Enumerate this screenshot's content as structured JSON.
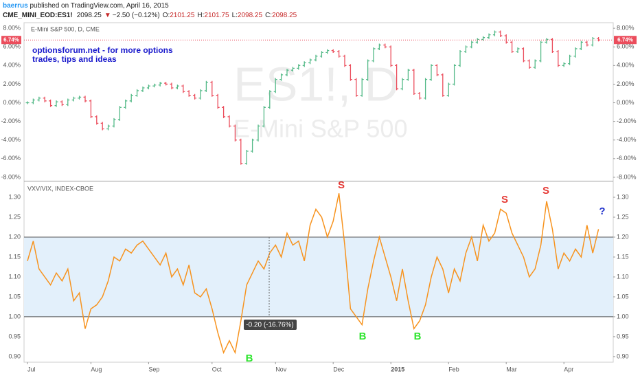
{
  "header": {
    "author": "baerrus",
    "published": " published on TradingView.com, April 16, 2015",
    "symbol": "CME_MINI_EOD:ES1!",
    "last": 2098.25,
    "change": "−2.50 (−0.12%)",
    "ohlc": [
      {
        "label": "O:",
        "value": 2101.25
      },
      {
        "label": "H:",
        "value": 2101.75
      },
      {
        "label": "L:",
        "value": 2098.25
      },
      {
        "label": "C:",
        "value": 2098.25
      }
    ]
  },
  "x_axis": {
    "categories": [
      "Jul",
      null,
      null,
      null,
      null,
      null,
      null,
      null,
      null,
      null,
      null,
      "Aug",
      null,
      null,
      null,
      null,
      null,
      null,
      null,
      null,
      null,
      "Sep",
      null,
      null,
      null,
      null,
      null,
      null,
      null,
      null,
      null,
      null,
      "Oct",
      null,
      null,
      null,
      null,
      null,
      null,
      null,
      null,
      null,
      null,
      "Nov",
      null,
      null,
      null,
      null,
      null,
      null,
      null,
      null,
      null,
      "Dec",
      null,
      null,
      null,
      null,
      null,
      null,
      null,
      null,
      null,
      "2015",
      null,
      null,
      null,
      null,
      null,
      null,
      null,
      null,
      null,
      "Feb",
      null,
      null,
      null,
      null,
      null,
      null,
      null,
      null,
      null,
      "Mar",
      null,
      null,
      null,
      null,
      null,
      null,
      null,
      null,
      null,
      "Apr",
      null,
      null,
      null,
      null,
      null,
      null
    ]
  },
  "chart_data": [
    {
      "type": "stock",
      "title": "E-Mini S&P 500, D, CME",
      "watermark": {
        "symbol": "ES1!, D",
        "name": "E-Mini S&P 500"
      },
      "annotation": "optionsforum.net  - for more options\ntrades, tips and ideas",
      "up_color": "#53b987",
      "down_color": "#eb4d5c",
      "ylim": [
        -8.3,
        8.6
      ],
      "yticks": [
        {
          "value": 8,
          "label": "8.00%"
        },
        {
          "value": 6,
          "label": "6.00%"
        },
        {
          "value": 4,
          "label": "4.00%"
        },
        {
          "value": 2,
          "label": "2.00%"
        },
        {
          "value": 0,
          "label": "0.00%"
        },
        {
          "value": -2,
          "label": "-2.00%"
        },
        {
          "value": -4,
          "label": "-4.00%"
        },
        {
          "value": -6,
          "label": "-6.00%"
        },
        {
          "value": -8,
          "label": "-8.00%"
        }
      ],
      "last_value": 6.74,
      "last_label": "6.74%",
      "values": [
        0.0,
        0.3,
        0.5,
        0.2,
        -0.3,
        0.1,
        -0.2,
        0.3,
        0.5,
        0.6,
        0.2,
        -1.5,
        -2.2,
        -2.8,
        -2.5,
        -1.8,
        -0.5,
        0.2,
        0.8,
        1.3,
        1.6,
        1.8,
        1.9,
        2.1,
        2.0,
        1.6,
        1.8,
        1.2,
        0.8,
        0.5,
        1.3,
        2.2,
        0.8,
        -0.5,
        -1.5,
        -2.5,
        -4.0,
        -6.5,
        -5.2,
        -4.0,
        -2.5,
        -0.5,
        1.2,
        2.5,
        3.0,
        3.5,
        3.7,
        4.0,
        4.3,
        4.6,
        5.0,
        5.4,
        5.6,
        5.5,
        5.0,
        4.0,
        2.5,
        0.8,
        2.5,
        4.5,
        5.8,
        6.2,
        6.0,
        4.0,
        1.5,
        2.5,
        3.5,
        1.0,
        0.5,
        2.5,
        4.0,
        3.0,
        0.8,
        2.0,
        4.0,
        5.5,
        6.0,
        6.5,
        6.8,
        7.0,
        7.3,
        7.6,
        7.2,
        6.5,
        5.5,
        5.8,
        4.5,
        3.8,
        4.5,
        6.5,
        6.8,
        5.5,
        4.0,
        4.2,
        5.0,
        5.8,
        6.5,
        6.2,
        6.9,
        6.74
      ]
    },
    {
      "type": "line",
      "title": "VXV/VIX, INDEX-CBOE",
      "color": "#f7931e",
      "band": [
        1.0,
        1.2
      ],
      "band_color": "#e3f0fb",
      "ylim": [
        0.886,
        1.338
      ],
      "yticks": [
        {
          "value": 1.3,
          "label": "1.30"
        },
        {
          "value": 1.25,
          "label": "1.25"
        },
        {
          "value": 1.2,
          "label": "1.20"
        },
        {
          "value": 1.15,
          "label": "1.15"
        },
        {
          "value": 1.1,
          "label": "1.10"
        },
        {
          "value": 1.05,
          "label": "1.05"
        },
        {
          "value": 1.0,
          "label": "1.00"
        },
        {
          "value": 0.95,
          "label": "0.95"
        },
        {
          "value": 0.9,
          "label": "0.90"
        }
      ],
      "measure": "-0.20 (-16.76%)",
      "annotations": [
        {
          "text": "S",
          "color": "#e53935"
        },
        {
          "text": "B",
          "color": "#2ee52e"
        },
        {
          "text": "B",
          "color": "#2ee52e"
        },
        {
          "text": "B",
          "color": "#2ee52e"
        },
        {
          "text": "S",
          "color": "#e53935"
        },
        {
          "text": "S",
          "color": "#e53935"
        },
        {
          "text": "?",
          "color": "#2233cc"
        }
      ],
      "values": [
        1.14,
        1.19,
        1.12,
        1.1,
        1.08,
        1.11,
        1.09,
        1.12,
        1.04,
        1.06,
        0.97,
        1.02,
        1.03,
        1.05,
        1.09,
        1.15,
        1.14,
        1.17,
        1.16,
        1.18,
        1.19,
        1.17,
        1.15,
        1.13,
        1.16,
        1.1,
        1.12,
        1.08,
        1.13,
        1.06,
        1.05,
        1.07,
        1.02,
        0.96,
        0.91,
        0.94,
        0.91,
        0.99,
        1.08,
        1.11,
        1.14,
        1.12,
        1.16,
        1.18,
        1.15,
        1.21,
        1.18,
        1.19,
        1.14,
        1.23,
        1.27,
        1.25,
        1.2,
        1.24,
        1.31,
        1.18,
        1.02,
        1.0,
        0.98,
        1.07,
        1.14,
        1.2,
        1.15,
        1.1,
        1.04,
        1.12,
        1.04,
        0.97,
        0.99,
        1.03,
        1.1,
        1.15,
        1.12,
        1.06,
        1.12,
        1.09,
        1.16,
        1.2,
        1.14,
        1.23,
        1.19,
        1.21,
        1.27,
        1.26,
        1.21,
        1.18,
        1.15,
        1.1,
        1.12,
        1.18,
        1.29,
        1.22,
        1.12,
        1.16,
        1.14,
        1.17,
        1.15,
        1.23,
        1.16,
        1.22
      ]
    }
  ]
}
